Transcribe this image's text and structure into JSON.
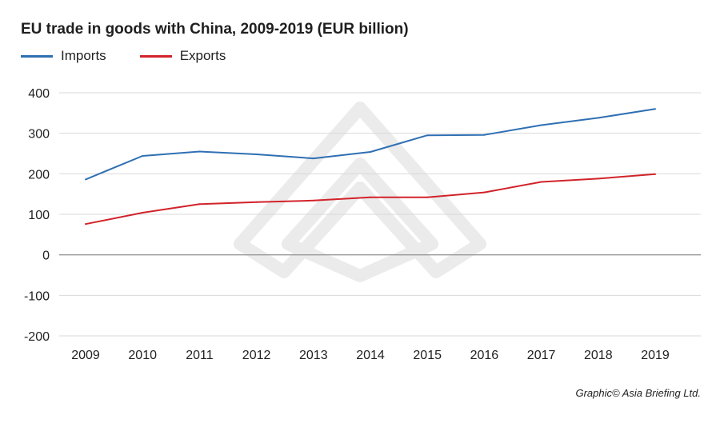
{
  "chart_data": {
    "type": "line",
    "title": "EU trade in goods with China, 2009-2019 (EUR billion)",
    "xlabel": "",
    "ylabel": "",
    "x": [
      "2009",
      "2010",
      "2011",
      "2012",
      "2013",
      "2014",
      "2015",
      "2016",
      "2017",
      "2018",
      "2019"
    ],
    "ylim": [
      -200,
      400
    ],
    "yticks": [
      "400",
      "300",
      "200",
      "100",
      "0",
      "-100",
      "-200"
    ],
    "grid": true,
    "legend_position": "top-left",
    "series": [
      {
        "name": "Imports",
        "color": "#2f6fb3",
        "values": [
          186,
          244,
          255,
          248,
          238,
          254,
          295,
          296,
          320,
          338,
          360
        ]
      },
      {
        "name": "Exports",
        "color": "#d2232a",
        "values": [
          76,
          104,
          125,
          130,
          134,
          142,
          142,
          154,
          180,
          188,
          199
        ]
      }
    ]
  },
  "credit": "Graphic© Asia Briefing Ltd."
}
